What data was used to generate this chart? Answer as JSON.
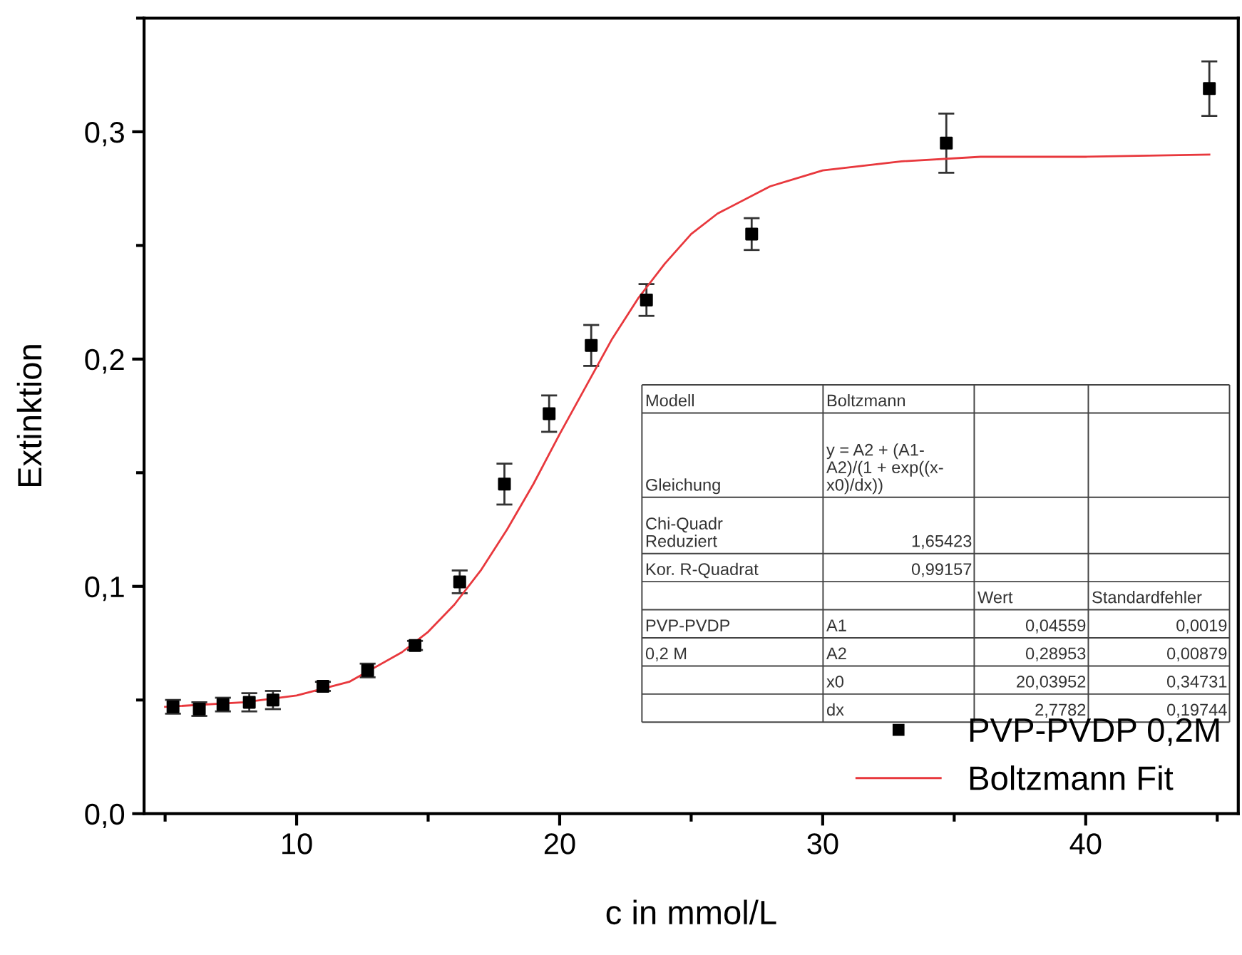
{
  "chart_data": {
    "type": "scatter",
    "xlabel": "c in mmol/L",
    "ylabel": "Extinktion",
    "xlim": [
      4.2,
      45.8
    ],
    "ylim": [
      0,
      0.35
    ],
    "xticks": [
      10,
      20,
      30,
      40
    ],
    "yticks": [
      {
        "value": 0,
        "label": "0,0"
      },
      {
        "value": 0.1,
        "label": "0,1"
      },
      {
        "value": 0.2,
        "label": "0,2"
      },
      {
        "value": 0.3,
        "label": "0,3"
      }
    ],
    "grid": false,
    "legend": "bottom right",
    "marker": "square",
    "series": [
      {
        "name": "PVP-PVDP 0,2M",
        "color": "#000000",
        "x": [
          5.3,
          6.3,
          7.2,
          8.2,
          9.1,
          11.0,
          12.7,
          14.5,
          16.2,
          17.9,
          19.6,
          21.2,
          23.3,
          27.3,
          34.7,
          44.7
        ],
        "values": [
          0.047,
          0.046,
          0.048,
          0.049,
          0.05,
          0.056,
          0.063,
          0.074,
          0.102,
          0.145,
          0.176,
          0.206,
          0.226,
          0.255,
          0.295,
          0.319
        ],
        "errors": [
          0.003,
          0.003,
          0.003,
          0.004,
          0.004,
          0.002,
          0.003,
          0.002,
          0.005,
          0.009,
          0.008,
          0.009,
          0.007,
          0.007,
          0.013,
          0.012
        ]
      },
      {
        "name": "Boltzmann Fit",
        "type": "line",
        "color": "#e8383d",
        "marker": "none",
        "x": [
          5,
          8,
          10,
          12,
          14,
          15,
          16,
          17,
          18,
          19,
          20,
          21,
          22,
          23,
          24,
          25,
          26,
          28,
          30,
          33,
          36,
          40,
          44.7
        ],
        "values": [
          0.047,
          0.049,
          0.052,
          0.058,
          0.071,
          0.08,
          0.092,
          0.107,
          0.125,
          0.145,
          0.167,
          0.188,
          0.209,
          0.227,
          0.242,
          0.255,
          0.264,
          0.276,
          0.283,
          0.287,
          0.289,
          0.289,
          0.29
        ]
      }
    ],
    "annotations": [
      "Modell\tBoltzmann\t\t",
      "Gleichung\ty = A2 + (A1-\nA2)/(1 + exp((x-\nx0)/dx))\t\t",
      "Chi-Quadr\nReduziert\t1,65423\t\t",
      "Kor. R-Quadrat\t0,99157\t\t",
      "\t\tWert\tStandardfehler",
      "PVP-PVDP\tA1\t0,04559\t0,0019",
      "0,2 M\tA2\t0,28953\t0,00879",
      "\tx0\t20,03952\t0,34731",
      "\tdx\t2,7782\t0,19744"
    ]
  }
}
